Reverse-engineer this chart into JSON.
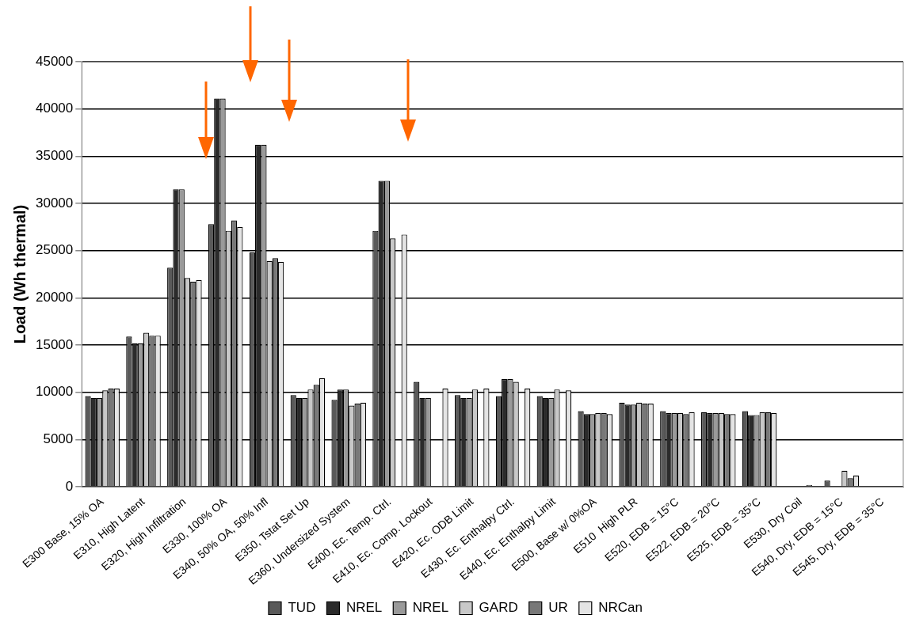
{
  "chart_data": {
    "type": "bar",
    "ylabel": "Load (Wh thermal)",
    "categories": [
      "E300 Base, 15% OA",
      "E310, High Latent",
      "E320, High Infiltration",
      "E330, 100% OA",
      "E340, 50% OA, 50% Infl",
      "E350, Tstat Set Up",
      "E360, Undersized System",
      "E400, Ec. Temp. Ctrl.",
      "E410, Ec. Comp. Lockout",
      "E420, Ec. ODB Limit",
      "E430, Ec. Enthalpy Ctrl.",
      "E440, Ec. Enthalpy Limit",
      "E500, Base w/ 0%OA",
      "E510  High PLR",
      "E520, EDB = 15°C",
      "E522, EDB = 20°C",
      "E525, EDB = 35°C",
      "E530, Dry Coil",
      "E540, Dry, EDB = 15°C",
      "E545, Dry, EDB = 35°C"
    ],
    "series": [
      {
        "name": "TUD",
        "color": "#5a5a5a",
        "values": [
          9600,
          15900,
          23200,
          27800,
          24800,
          9700,
          9200,
          27100,
          11100,
          9700,
          9600,
          9600,
          8000,
          8900,
          8000,
          7900,
          8000,
          null,
          650,
          null
        ]
      },
      {
        "name": "NREL",
        "color": "#2b2b2b",
        "values": [
          9400,
          15200,
          31500,
          41100,
          36200,
          9400,
          10300,
          32400,
          9400,
          9400,
          11400,
          9400,
          7700,
          8700,
          7800,
          7800,
          7600,
          null,
          null,
          null
        ]
      },
      {
        "name": "NREL",
        "color": "#9a9a9a",
        "values": [
          9400,
          15200,
          31500,
          41100,
          36200,
          9400,
          10300,
          32400,
          9400,
          9400,
          11400,
          9400,
          7700,
          8700,
          7800,
          7800,
          7600,
          null,
          null,
          null
        ]
      },
      {
        "name": "GARD",
        "color": "#c8c8c8",
        "values": [
          10200,
          16300,
          22100,
          27100,
          23900,
          10300,
          8600,
          26300,
          null,
          10300,
          11100,
          10300,
          7800,
          8900,
          7800,
          7800,
          7900,
          null,
          1700,
          null
        ]
      },
      {
        "name": "UR",
        "color": "#787878",
        "values": [
          10400,
          16000,
          21700,
          28200,
          24200,
          10800,
          8800,
          null,
          null,
          null,
          null,
          null,
          7800,
          8800,
          7700,
          7700,
          7900,
          200,
          900,
          null
        ]
      },
      {
        "name": "NRCan",
        "color": "#e4e4e4",
        "values": [
          10400,
          16000,
          21900,
          27500,
          23800,
          11500,
          8900,
          26700,
          10400,
          10400,
          10400,
          10200,
          7700,
          8800,
          7900,
          7700,
          7800,
          null,
          1200,
          null
        ]
      }
    ],
    "ylim": [
      0,
      45000
    ],
    "yticks": [
      0,
      5000,
      10000,
      15000,
      20000,
      25000,
      30000,
      35000,
      40000,
      45000
    ],
    "grid": "y",
    "legend": "bottom"
  }
}
